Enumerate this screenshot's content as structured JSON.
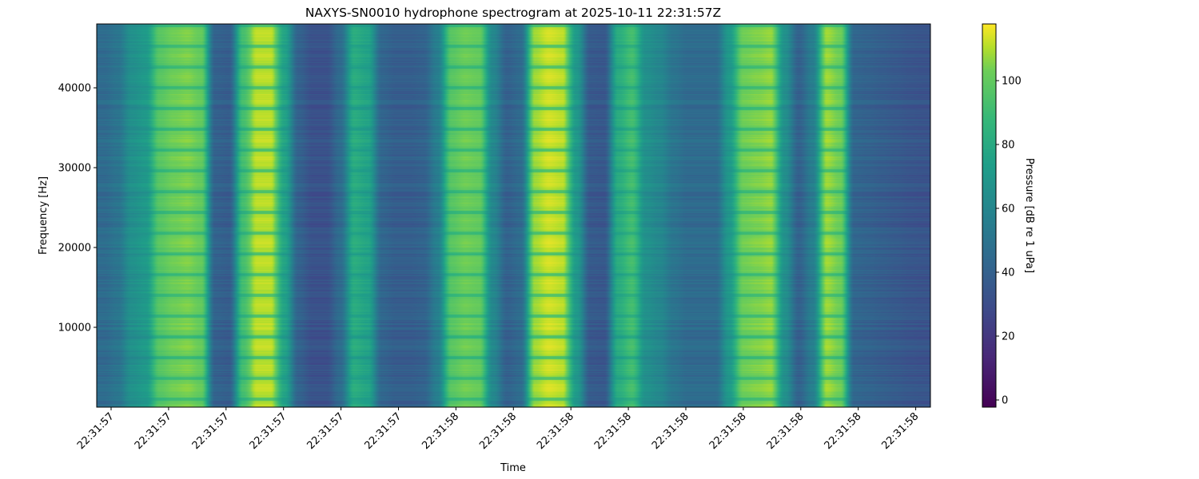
{
  "chart_data": {
    "type": "heatmap",
    "title": "NAXYS-SN0010 hydrophone spectrogram at 2025-10-11 22:31:57Z",
    "xlabel": "Time",
    "ylabel": "Frequency [Hz]",
    "colorbar_label": "Pressure [dB re 1 uPa]",
    "colormap": "viridis",
    "ylim": [
      0,
      48000
    ],
    "yticks": [
      "10000",
      "20000",
      "30000",
      "40000"
    ],
    "ytick_values": [
      10000,
      20000,
      30000,
      40000
    ],
    "xticks": [
      "22:31:57",
      "22:31:57",
      "22:31:57",
      "22:31:57",
      "22:31:57",
      "22:31:57",
      "22:31:58",
      "22:31:58",
      "22:31:58",
      "22:31:58",
      "22:31:58",
      "22:31:58",
      "22:31:58",
      "22:31:58",
      "22:31:58"
    ],
    "clim": [
      -2.25,
      117.75
    ],
    "colorbar_ticks": [
      "0",
      "20",
      "40",
      "60",
      "80",
      "100"
    ],
    "colorbar_tick_values": [
      0,
      20,
      40,
      60,
      80,
      100
    ],
    "column_levels_db": [
      45,
      50,
      65,
      70,
      95,
      100,
      102,
      98,
      40,
      38,
      90,
      108,
      108,
      75,
      40,
      32,
      32,
      45,
      80,
      75,
      42,
      38,
      38,
      40,
      55,
      95,
      100,
      98,
      60,
      40,
      45,
      105,
      110,
      108,
      70,
      36,
      35,
      80,
      90,
      65,
      60,
      50,
      45,
      45,
      45,
      70,
      100,
      102,
      104,
      65,
      40,
      55,
      105,
      100,
      42,
      40,
      38,
      36,
      34,
      33
    ]
  }
}
